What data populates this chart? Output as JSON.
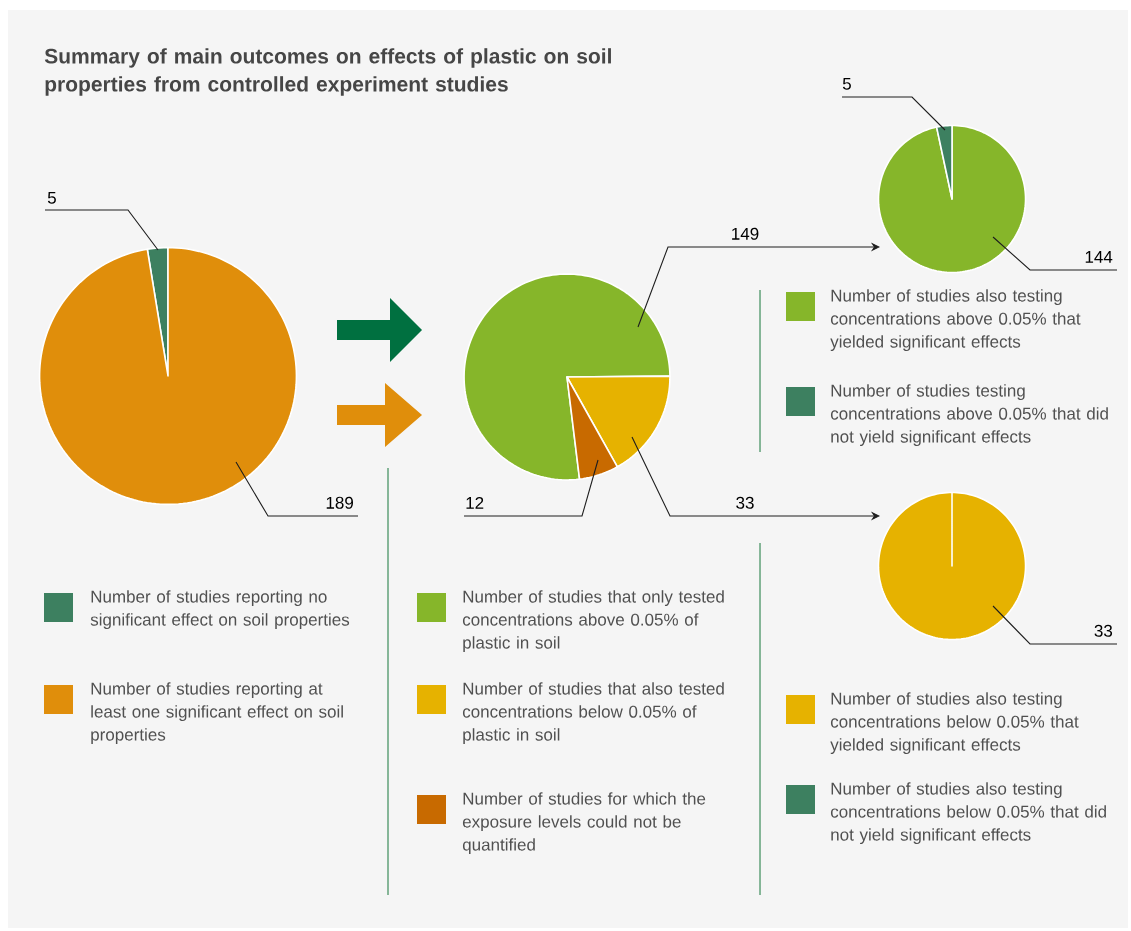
{
  "chart_data": [
    {
      "type": "pie",
      "title": "Summary of main outcomes on effects of plastic on soil properties  from controlled experiment studies",
      "categories": [
        "Number of studies reporting no significant effect on soil properties",
        "Number of studies reporting at least one significant effect on soil properties"
      ],
      "values": [
        5,
        189
      ],
      "colors": [
        "#3d8060",
        "#e08e0b"
      ],
      "value_labels": [
        "5",
        "189"
      ],
      "legend": "bottom"
    },
    {
      "type": "pie",
      "categories": [
        "Number of studies that only tested concentrations above 0.05% of plastic in soil",
        "Number of studies that also tested concentrations below 0.05% of plastic in soil",
        "Number of studies for which the exposure levels could not be quantified"
      ],
      "values": [
        149,
        33,
        12
      ],
      "colors": [
        "#86b62a",
        "#e6b200",
        "#c86a00"
      ],
      "value_labels": [
        "149",
        "33",
        "12"
      ],
      "legend": "bottom"
    },
    {
      "type": "pie",
      "categories": [
        "Number of studies also testing concentrations above 0.05% that yielded significant effects",
        "Number of studies testing concentrations above 0.05% that did not yield significant effects"
      ],
      "values": [
        144,
        5
      ],
      "colors": [
        "#86b62a",
        "#3d8060"
      ],
      "value_labels": [
        "144",
        "5"
      ],
      "legend": "right"
    },
    {
      "type": "pie",
      "categories": [
        "Number of studies also testing concentrations below 0.05% that yielded significant effects",
        "Number of studies also testing concentrations below 0.05% that did not yield significant effects"
      ],
      "values": [
        33,
        0
      ],
      "colors": [
        "#e6b200",
        "#3d8060"
      ],
      "value_labels": [
        "33",
        null
      ],
      "legend": "bottom"
    }
  ]
}
